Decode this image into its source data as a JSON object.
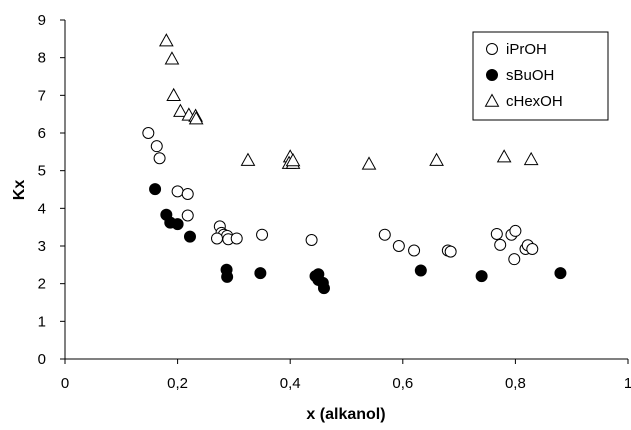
{
  "chart_data": {
    "type": "scatter",
    "title": "",
    "xlabel": "x (alkanol)",
    "ylabel": "Kx",
    "xlim": [
      0,
      1
    ],
    "ylim": [
      0,
      9
    ],
    "x_ticks": [
      "0",
      "0,2",
      "0,4",
      "0,6",
      "0,8",
      "1"
    ],
    "y_ticks": [
      "0",
      "1",
      "2",
      "3",
      "4",
      "5",
      "6",
      "7",
      "8",
      "9"
    ],
    "grid": false,
    "legend_position": "top-right",
    "series": [
      {
        "name": "iPrOH",
        "marker": "open-circle",
        "color": "#000000",
        "points": [
          [
            0.148,
            6.0
          ],
          [
            0.163,
            5.65
          ],
          [
            0.168,
            5.33
          ],
          [
            0.2,
            4.45
          ],
          [
            0.218,
            4.38
          ],
          [
            0.218,
            3.81
          ],
          [
            0.275,
            3.52
          ],
          [
            0.278,
            3.35
          ],
          [
            0.282,
            3.3
          ],
          [
            0.288,
            3.27
          ],
          [
            0.27,
            3.2
          ],
          [
            0.29,
            3.18
          ],
          [
            0.305,
            3.2
          ],
          [
            0.35,
            3.3
          ],
          [
            0.438,
            3.16
          ],
          [
            0.568,
            3.3
          ],
          [
            0.593,
            3.0
          ],
          [
            0.62,
            2.88
          ],
          [
            0.68,
            2.88
          ],
          [
            0.685,
            2.85
          ],
          [
            0.767,
            3.32
          ],
          [
            0.773,
            3.03
          ],
          [
            0.793,
            3.3
          ],
          [
            0.8,
            3.4
          ],
          [
            0.798,
            2.65
          ],
          [
            0.818,
            2.92
          ],
          [
            0.822,
            3.02
          ],
          [
            0.83,
            2.92
          ]
        ]
      },
      {
        "name": "sBuOH",
        "marker": "filled-circle",
        "color": "#000000",
        "points": [
          [
            0.16,
            4.51
          ],
          [
            0.18,
            3.83
          ],
          [
            0.187,
            3.62
          ],
          [
            0.2,
            3.58
          ],
          [
            0.222,
            3.25
          ],
          [
            0.287,
            2.37
          ],
          [
            0.288,
            2.18
          ],
          [
            0.347,
            2.28
          ],
          [
            0.445,
            2.2
          ],
          [
            0.45,
            2.25
          ],
          [
            0.45,
            2.1
          ],
          [
            0.458,
            2.02
          ],
          [
            0.46,
            1.88
          ],
          [
            0.632,
            2.35
          ],
          [
            0.74,
            2.2
          ],
          [
            0.88,
            2.28
          ]
        ]
      },
      {
        "name": "cHexOH",
        "marker": "open-triangle",
        "color": "#000000",
        "points": [
          [
            0.18,
            8.45
          ],
          [
            0.19,
            7.97
          ],
          [
            0.193,
            7.0
          ],
          [
            0.205,
            6.58
          ],
          [
            0.22,
            6.48
          ],
          [
            0.232,
            6.45
          ],
          [
            0.233,
            6.38
          ],
          [
            0.325,
            5.28
          ],
          [
            0.4,
            5.37
          ],
          [
            0.398,
            5.2
          ],
          [
            0.405,
            5.2
          ],
          [
            0.405,
            5.27
          ],
          [
            0.54,
            5.18
          ],
          [
            0.66,
            5.28
          ],
          [
            0.78,
            5.37
          ],
          [
            0.828,
            5.3
          ]
        ]
      }
    ]
  }
}
